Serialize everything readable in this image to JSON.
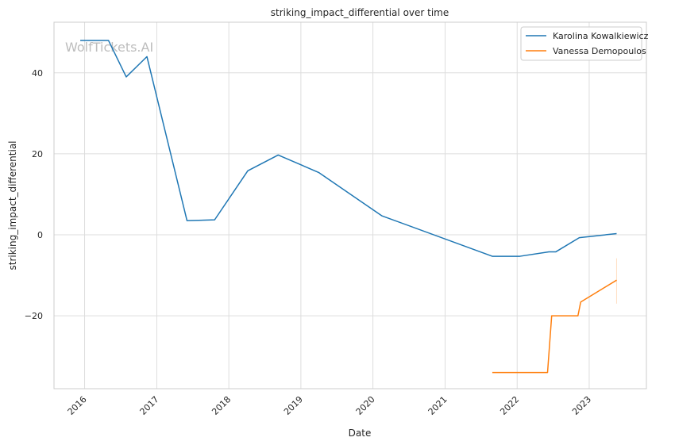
{
  "chart_data": {
    "type": "line",
    "title": "striking_impact_differential over time",
    "xlabel": "Date",
    "ylabel": "striking_impact_differential",
    "watermark": "WolfTickets.AI",
    "x_ticks": [
      "2016",
      "2017",
      "2018",
      "2019",
      "2020",
      "2021",
      "2022",
      "2023"
    ],
    "y_ticks": [
      -20,
      0,
      20,
      40
    ],
    "xlim": [
      "2015-07-30",
      "2023-10-18"
    ],
    "ylim": [
      -38,
      52.5
    ],
    "grid": true,
    "legend_position": "top-right",
    "series": [
      {
        "name": "Karolina Kowalkiewicz",
        "color": "#1f77b4",
        "points": [
          [
            "2015-12-10",
            48
          ],
          [
            "2016-05-01",
            48
          ],
          [
            "2016-07-30",
            39
          ],
          [
            "2016-11-12",
            44
          ],
          [
            "2017-06-03",
            3.5
          ],
          [
            "2017-10-21",
            3.7
          ],
          [
            "2018-04-07",
            15.8
          ],
          [
            "2018-09-08",
            19.7
          ],
          [
            "2019-04-01",
            15.4
          ],
          [
            "2020-02-15",
            4.7
          ],
          [
            "2021-08-28",
            -5.3
          ],
          [
            "2022-01-15",
            -5.3
          ],
          [
            "2022-06-11",
            -4.2
          ],
          [
            "2022-07-16",
            -4.2
          ],
          [
            "2022-11-12",
            -0.7
          ],
          [
            "2023-05-20",
            0.3
          ]
        ]
      },
      {
        "name": "Vanessa Demopoulos",
        "color": "#ff7f0e",
        "points": [
          [
            "2021-08-28",
            -34
          ],
          [
            "2022-06-04",
            -34
          ],
          [
            "2022-06-25",
            -20
          ],
          [
            "2022-11-05",
            -20
          ],
          [
            "2022-11-19",
            -16.6
          ],
          [
            "2023-05-20",
            -11.2
          ]
        ],
        "band": {
          "x": "2023-05-20",
          "low": -17.0,
          "high": -5.8
        }
      }
    ]
  }
}
